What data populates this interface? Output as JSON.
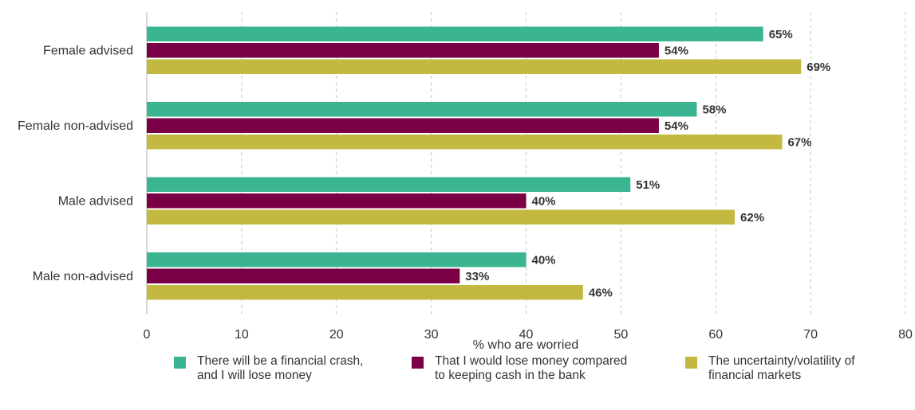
{
  "chart_data": {
    "type": "bar",
    "orientation": "horizontal",
    "categories": [
      "Female advised",
      "Female non-advised",
      "Male advised",
      "Male non-advised"
    ],
    "series": [
      {
        "name": "There will be a financial crash,\nand I will lose money",
        "color": "#3bb591",
        "values": [
          65,
          58,
          51,
          40
        ]
      },
      {
        "name": "That I would lose money compared\nto keeping cash in the bank",
        "color": "#7a0045",
        "values": [
          54,
          54,
          40,
          33
        ]
      },
      {
        "name": "The uncertainty/volatility of\nfinancial markets",
        "color": "#c3b941",
        "values": [
          69,
          67,
          62,
          46
        ]
      }
    ],
    "value_suffix": "%",
    "xlabel": "% who are worried",
    "xlim": [
      0,
      80
    ],
    "xticks": [
      0,
      10,
      20,
      30,
      40,
      50,
      60,
      70,
      80
    ],
    "grid": "vertical dashed",
    "legend_position": "bottom"
  }
}
